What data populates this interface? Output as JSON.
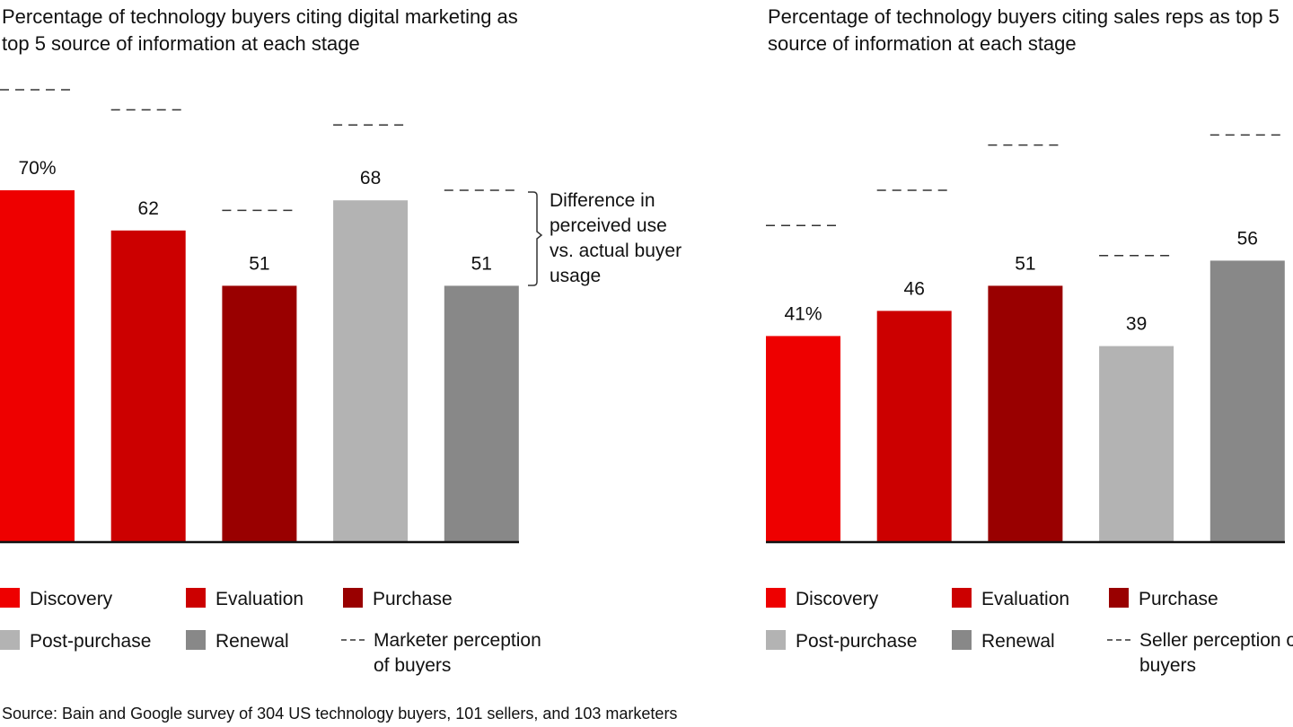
{
  "chart_data": [
    {
      "type": "bar",
      "title": "Percentage of technology buyers citing digital marketing as top 5 source of information at each stage",
      "categories": [
        "Discovery",
        "Evaluation",
        "Purchase",
        "Post-purchase",
        "Renewal"
      ],
      "values": [
        70,
        62,
        51,
        68,
        51
      ],
      "value_labels": [
        "70%",
        "62",
        "51",
        "68",
        "51"
      ],
      "colors": [
        "#ee0000",
        "#cc0000",
        "#990000",
        "#b3b3b3",
        "#888888"
      ],
      "perception": {
        "name": "Marketer perception of buyers",
        "values": [
          90,
          86,
          66,
          83,
          70
        ]
      },
      "annotation": "Difference in perceived use vs. actual buyer usage",
      "ylim": [
        0,
        100
      ]
    },
    {
      "type": "bar",
      "title": "Percentage of technology buyers citing sales reps as top 5 source of information at each stage",
      "categories": [
        "Discovery",
        "Evaluation",
        "Purchase",
        "Post-purchase",
        "Renewal"
      ],
      "values": [
        41,
        46,
        51,
        39,
        56
      ],
      "value_labels": [
        "41%",
        "46",
        "51",
        "39",
        "56"
      ],
      "colors": [
        "#ee0000",
        "#cc0000",
        "#990000",
        "#b3b3b3",
        "#888888"
      ],
      "perception": {
        "name": "Seller perception of buyers",
        "values": [
          63,
          70,
          79,
          57,
          81
        ]
      },
      "ylim": [
        0,
        100
      ]
    }
  ],
  "source": "Source: Bain and Google survey of 304 US technology buyers, 101 sellers, and 103 marketers"
}
